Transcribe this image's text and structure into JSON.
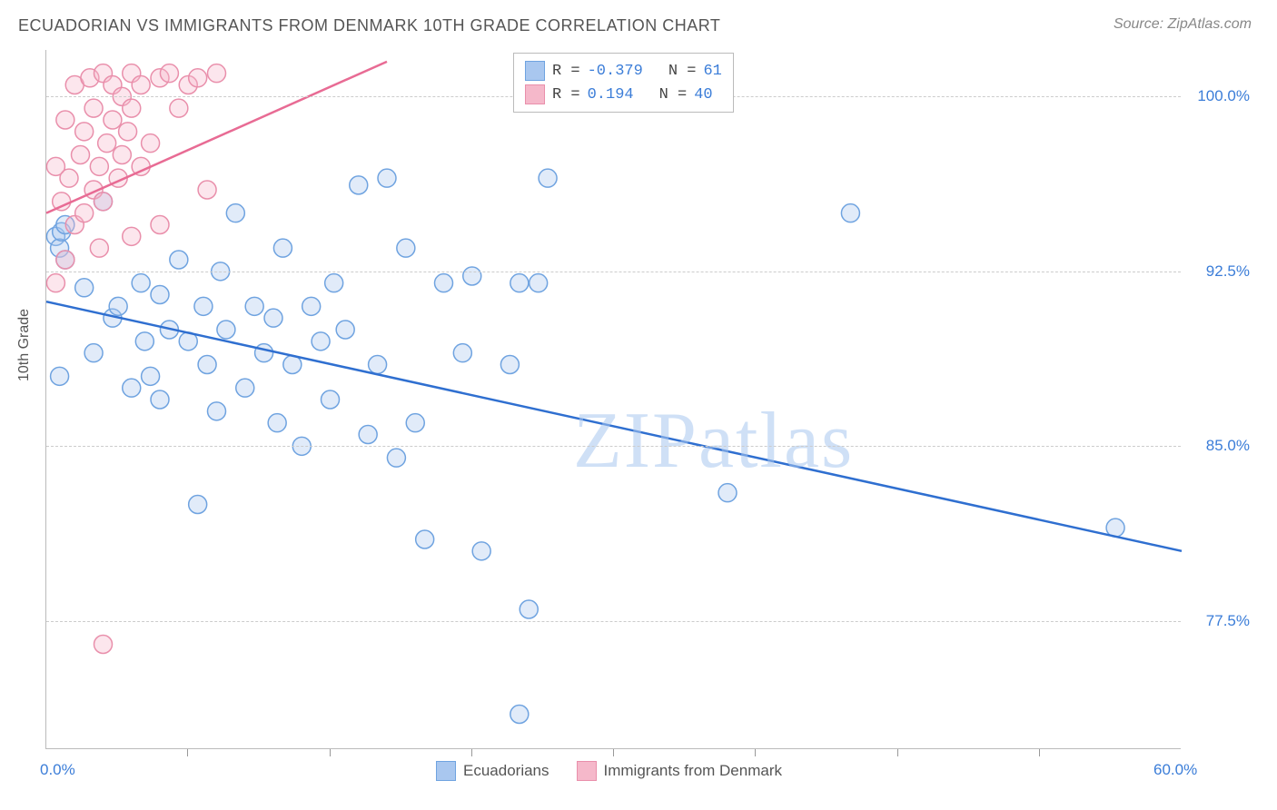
{
  "title": "ECUADORIAN VS IMMIGRANTS FROM DENMARK 10TH GRADE CORRELATION CHART",
  "source": "Source: ZipAtlas.com",
  "watermark": "ZIPatlas",
  "ylabel": "10th Grade",
  "chart": {
    "type": "scatter",
    "xlim": [
      0,
      60
    ],
    "ylim": [
      72,
      102
    ],
    "yticks": [
      {
        "v": 77.5,
        "label": "77.5%"
      },
      {
        "v": 85.0,
        "label": "85.0%"
      },
      {
        "v": 92.5,
        "label": "92.5%"
      },
      {
        "v": 100.0,
        "label": "100.0%"
      }
    ],
    "xtick_label_lo": "0.0%",
    "xtick_label_hi": "60.0%",
    "xtick_marks": [
      7.5,
      15,
      22.5,
      30,
      37.5,
      45,
      52.5
    ],
    "grid_color": "#cccccc",
    "background_color": "#ffffff",
    "marker_radius": 10,
    "marker_fill_opacity": 0.35,
    "marker_stroke_width": 1.5,
    "line_width": 2.5,
    "series": [
      {
        "name": "Ecuadorians",
        "color_fill": "#a9c7ef",
        "color_stroke": "#6fa3e0",
        "line_color": "#2f6fd0",
        "R": "-0.379",
        "N": "61",
        "trend": {
          "x1": 0,
          "y1": 91.2,
          "x2": 60,
          "y2": 80.5
        },
        "points": [
          [
            0.5,
            94.0
          ],
          [
            0.7,
            93.5
          ],
          [
            0.8,
            94.2
          ],
          [
            1.0,
            93.0
          ],
          [
            1.0,
            94.5
          ],
          [
            2.0,
            91.8
          ],
          [
            2.5,
            89.0
          ],
          [
            3.0,
            95.5
          ],
          [
            3.5,
            90.5
          ],
          [
            3.8,
            91.0
          ],
          [
            4.5,
            87.5
          ],
          [
            5.0,
            92.0
          ],
          [
            5.2,
            89.5
          ],
          [
            5.5,
            88.0
          ],
          [
            6.0,
            91.5
          ],
          [
            6.0,
            87.0
          ],
          [
            6.5,
            90.0
          ],
          [
            7.0,
            93.0
          ],
          [
            7.5,
            89.5
          ],
          [
            8.0,
            82.5
          ],
          [
            8.3,
            91.0
          ],
          [
            8.5,
            88.5
          ],
          [
            9.0,
            86.5
          ],
          [
            9.2,
            92.5
          ],
          [
            9.5,
            90.0
          ],
          [
            10.0,
            95.0
          ],
          [
            10.5,
            87.5
          ],
          [
            11.0,
            91.0
          ],
          [
            11.5,
            89.0
          ],
          [
            12.0,
            90.5
          ],
          [
            12.2,
            86.0
          ],
          [
            12.5,
            93.5
          ],
          [
            13.0,
            88.5
          ],
          [
            13.5,
            85.0
          ],
          [
            14.0,
            91.0
          ],
          [
            14.5,
            89.5
          ],
          [
            15.0,
            87.0
          ],
          [
            15.2,
            92.0
          ],
          [
            15.8,
            90.0
          ],
          [
            16.5,
            96.2
          ],
          [
            17.0,
            85.5
          ],
          [
            17.5,
            88.5
          ],
          [
            18.0,
            96.5
          ],
          [
            18.5,
            84.5
          ],
          [
            19.0,
            93.5
          ],
          [
            19.5,
            86.0
          ],
          [
            20.0,
            81.0
          ],
          [
            21.0,
            92.0
          ],
          [
            22.0,
            89.0
          ],
          [
            22.5,
            92.3
          ],
          [
            23.0,
            80.5
          ],
          [
            24.5,
            88.5
          ],
          [
            25.0,
            92.0
          ],
          [
            25.5,
            78.0
          ],
          [
            26.0,
            92.0
          ],
          [
            26.5,
            96.5
          ],
          [
            25.0,
            73.5
          ],
          [
            36.0,
            83.0
          ],
          [
            42.5,
            95.0
          ],
          [
            56.5,
            81.5
          ],
          [
            0.7,
            88.0
          ]
        ]
      },
      {
        "name": "Immigrants from Denmark",
        "color_fill": "#f5b8ca",
        "color_stroke": "#e98fab",
        "line_color": "#e86b94",
        "R": "0.194",
        "N": "40",
        "trend": {
          "x1": 0,
          "y1": 95.0,
          "x2": 18,
          "y2": 101.5
        },
        "points": [
          [
            0.5,
            97.0
          ],
          [
            0.8,
            95.5
          ],
          [
            1.0,
            99.0
          ],
          [
            1.2,
            96.5
          ],
          [
            1.5,
            94.5
          ],
          [
            1.5,
            100.5
          ],
          [
            1.8,
            97.5
          ],
          [
            2.0,
            95.0
          ],
          [
            2.0,
            98.5
          ],
          [
            2.3,
            100.8
          ],
          [
            2.5,
            96.0
          ],
          [
            2.5,
            99.5
          ],
          [
            2.8,
            97.0
          ],
          [
            3.0,
            101.0
          ],
          [
            3.0,
            95.5
          ],
          [
            3.2,
            98.0
          ],
          [
            3.5,
            99.0
          ],
          [
            3.5,
            100.5
          ],
          [
            3.8,
            96.5
          ],
          [
            4.0,
            97.5
          ],
          [
            4.0,
            100.0
          ],
          [
            4.3,
            98.5
          ],
          [
            4.5,
            99.5
          ],
          [
            4.5,
            101.0
          ],
          [
            5.0,
            97.0
          ],
          [
            5.0,
            100.5
          ],
          [
            5.5,
            98.0
          ],
          [
            6.0,
            100.8
          ],
          [
            6.5,
            101.0
          ],
          [
            7.0,
            99.5
          ],
          [
            7.5,
            100.5
          ],
          [
            8.0,
            100.8
          ],
          [
            8.5,
            96.0
          ],
          [
            9.0,
            101.0
          ],
          [
            2.8,
            93.5
          ],
          [
            4.5,
            94.0
          ],
          [
            3.0,
            76.5
          ],
          [
            6.0,
            94.5
          ],
          [
            1.0,
            93.0
          ],
          [
            0.5,
            92.0
          ]
        ]
      }
    ]
  },
  "stats_legend": {
    "rows": [
      {
        "swatch_fill": "#a9c7ef",
        "swatch_stroke": "#6fa3e0",
        "r_label": "R =",
        "r_val": "-0.379",
        "n_label": "N =",
        "n_val": " 61"
      },
      {
        "swatch_fill": "#f5b8ca",
        "swatch_stroke": "#e98fab",
        "r_label": "R =",
        "r_val": " 0.194",
        "n_label": "N =",
        "n_val": " 40"
      }
    ]
  },
  "bottom_legend": {
    "items": [
      {
        "swatch_fill": "#a9c7ef",
        "swatch_stroke": "#6fa3e0",
        "label": "Ecuadorians"
      },
      {
        "swatch_fill": "#f5b8ca",
        "swatch_stroke": "#e98fab",
        "label": "Immigrants from Denmark"
      }
    ]
  }
}
